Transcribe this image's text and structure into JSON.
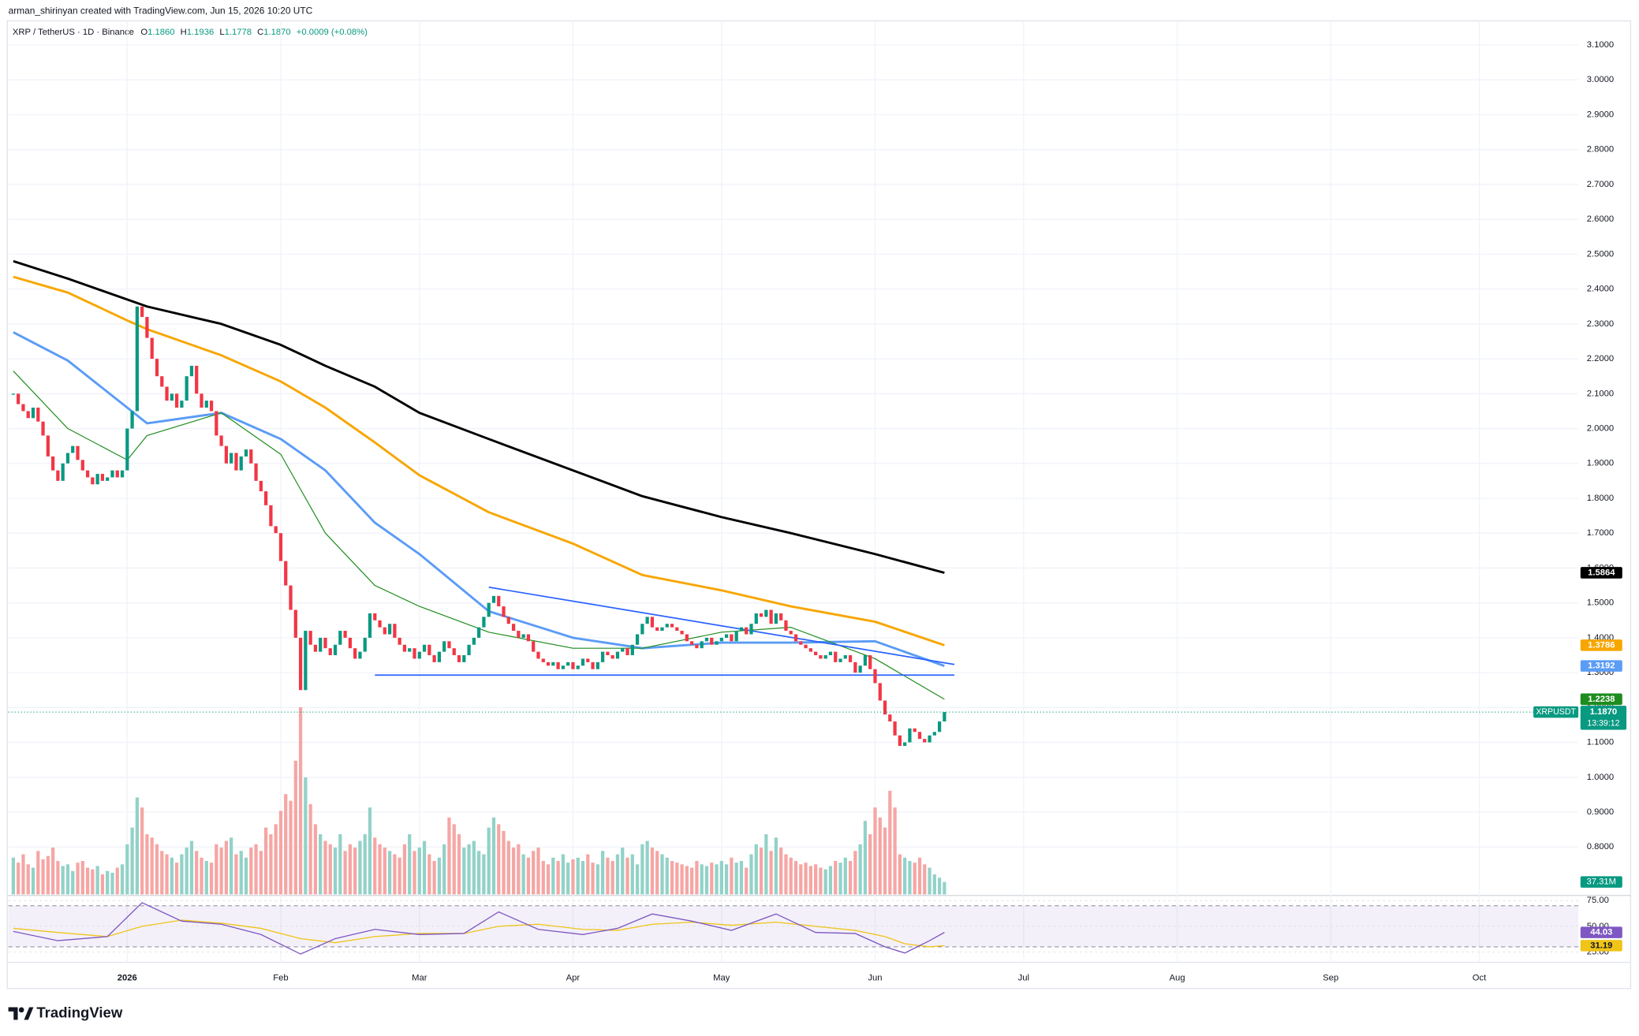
{
  "header": {
    "author_line": "arman_shirinyan created with TradingView.com, Jun 15, 2026 10:20 UTC",
    "symbol": "XRP / TetherUS · 1D · Binance",
    "ohlc": [
      {
        "key": "O",
        "value": "1.1860"
      },
      {
        "key": "H",
        "value": "1.1936"
      },
      {
        "key": "L",
        "value": "1.1778"
      },
      {
        "key": "C",
        "value": "1.1870"
      }
    ],
    "change": "+0.0009 (+0.08%)"
  },
  "chart_data": {
    "type": "candlestick",
    "x": [
      "2025-12-09",
      "2025-12-10",
      "2025-12-11",
      "2025-12-12",
      "2025-12-13",
      "2025-12-14",
      "2025-12-15",
      "2025-12-16",
      "2025-12-17",
      "2025-12-18",
      "2025-12-19",
      "2025-12-20",
      "2025-12-21",
      "2025-12-22",
      "2025-12-23",
      "2025-12-24",
      "2025-12-25",
      "2025-12-26",
      "2025-12-27",
      "2025-12-28",
      "2025-12-29",
      "2025-12-30",
      "2025-12-31",
      "2026-01-01",
      "2026-01-02",
      "2026-01-03",
      "2026-01-04",
      "2026-01-05",
      "2026-01-06",
      "2026-01-07",
      "2026-01-08",
      "2026-01-09",
      "2026-01-10",
      "2026-01-11",
      "2026-01-12",
      "2026-01-13",
      "2026-01-14",
      "2026-01-15",
      "2026-01-16",
      "2026-01-17",
      "2026-01-18",
      "2026-01-19",
      "2026-01-20",
      "2026-01-21",
      "2026-01-22",
      "2026-01-23",
      "2026-01-24",
      "2026-01-25",
      "2026-01-26",
      "2026-01-27",
      "2026-01-28",
      "2026-01-29",
      "2026-01-30",
      "2026-01-31",
      "2026-02-01",
      "2026-02-02",
      "2026-02-03",
      "2026-02-04",
      "2026-02-05",
      "2026-02-06",
      "2026-02-07",
      "2026-02-08",
      "2026-02-09",
      "2026-02-10",
      "2026-02-11",
      "2026-02-12",
      "2026-02-13",
      "2026-02-14",
      "2026-02-15",
      "2026-02-16",
      "2026-02-17",
      "2026-02-18",
      "2026-02-19",
      "2026-02-20",
      "2026-02-21",
      "2026-02-22",
      "2026-02-23",
      "2026-02-24",
      "2026-02-25",
      "2026-02-26",
      "2026-02-27",
      "2026-02-28",
      "2026-03-01",
      "2026-03-02",
      "2026-03-03",
      "2026-03-04",
      "2026-03-05",
      "2026-03-06",
      "2026-03-07",
      "2026-03-08",
      "2026-03-09",
      "2026-03-10",
      "2026-03-11",
      "2026-03-12",
      "2026-03-13",
      "2026-03-14",
      "2026-03-15",
      "2026-03-16",
      "2026-03-17",
      "2026-03-18",
      "2026-03-19",
      "2026-03-20",
      "2026-03-21",
      "2026-03-22",
      "2026-03-23",
      "2026-03-24",
      "2026-03-25",
      "2026-03-26",
      "2026-03-27",
      "2026-03-28",
      "2026-03-29",
      "2026-03-30",
      "2026-03-31",
      "2026-04-01",
      "2026-04-02",
      "2026-04-03",
      "2026-04-04",
      "2026-04-05",
      "2026-04-06",
      "2026-04-07",
      "2026-04-08",
      "2026-04-09",
      "2026-04-10",
      "2026-04-11",
      "2026-04-12",
      "2026-04-13",
      "2026-04-14",
      "2026-04-15",
      "2026-04-16",
      "2026-04-17",
      "2026-04-18",
      "2026-04-19",
      "2026-04-20",
      "2026-04-21",
      "2026-04-22",
      "2026-04-23",
      "2026-04-24",
      "2026-04-25",
      "2026-04-26",
      "2026-04-27",
      "2026-04-28",
      "2026-04-29",
      "2026-04-30",
      "2026-05-01",
      "2026-05-02",
      "2026-05-03",
      "2026-05-04",
      "2026-05-05",
      "2026-05-06",
      "2026-05-07",
      "2026-05-08",
      "2026-05-09",
      "2026-05-10",
      "2026-05-11",
      "2026-05-12",
      "2026-05-13",
      "2026-05-14",
      "2026-05-15",
      "2026-05-16",
      "2026-05-17",
      "2026-05-18",
      "2026-05-19",
      "2026-05-20",
      "2026-05-21",
      "2026-05-22",
      "2026-05-23",
      "2026-05-24",
      "2026-05-25",
      "2026-05-26",
      "2026-05-27",
      "2026-05-28",
      "2026-05-29",
      "2026-05-30",
      "2026-05-31",
      "2026-06-01",
      "2026-06-02",
      "2026-06-03",
      "2026-06-04",
      "2026-06-05",
      "2026-06-06",
      "2026-06-07",
      "2026-06-08",
      "2026-06-09",
      "2026-06-10",
      "2026-06-11",
      "2026-06-12",
      "2026-06-13",
      "2026-06-14",
      "2026-06-15"
    ],
    "close": [
      2.1,
      2.07,
      2.05,
      2.03,
      2.06,
      2.02,
      1.98,
      1.92,
      1.88,
      1.85,
      1.9,
      1.93,
      1.95,
      1.91,
      1.88,
      1.86,
      1.84,
      1.87,
      1.85,
      1.86,
      1.88,
      1.86,
      1.88,
      2.0,
      2.05,
      2.35,
      2.32,
      2.26,
      2.2,
      2.15,
      2.12,
      2.08,
      2.1,
      2.06,
      2.08,
      2.15,
      2.18,
      2.1,
      2.06,
      2.08,
      2.05,
      1.98,
      1.95,
      1.9,
      1.93,
      1.88,
      1.92,
      1.94,
      1.9,
      1.85,
      1.82,
      1.78,
      1.72,
      1.7,
      1.62,
      1.55,
      1.48,
      1.4,
      1.25,
      1.42,
      1.38,
      1.36,
      1.4,
      1.37,
      1.35,
      1.38,
      1.42,
      1.4,
      1.37,
      1.34,
      1.36,
      1.4,
      1.47,
      1.45,
      1.43,
      1.41,
      1.44,
      1.4,
      1.38,
      1.36,
      1.37,
      1.34,
      1.36,
      1.38,
      1.35,
      1.33,
      1.36,
      1.39,
      1.37,
      1.35,
      1.33,
      1.35,
      1.38,
      1.4,
      1.43,
      1.46,
      1.5,
      1.52,
      1.49,
      1.46,
      1.44,
      1.42,
      1.4,
      1.41,
      1.39,
      1.36,
      1.34,
      1.33,
      1.32,
      1.33,
      1.31,
      1.32,
      1.33,
      1.31,
      1.32,
      1.34,
      1.33,
      1.31,
      1.33,
      1.36,
      1.35,
      1.34,
      1.36,
      1.37,
      1.35,
      1.38,
      1.41,
      1.44,
      1.46,
      1.43,
      1.42,
      1.43,
      1.44,
      1.43,
      1.42,
      1.41,
      1.39,
      1.38,
      1.37,
      1.39,
      1.4,
      1.38,
      1.39,
      1.4,
      1.41,
      1.39,
      1.42,
      1.43,
      1.41,
      1.44,
      1.47,
      1.46,
      1.48,
      1.44,
      1.47,
      1.45,
      1.42,
      1.41,
      1.39,
      1.38,
      1.37,
      1.36,
      1.35,
      1.34,
      1.35,
      1.36,
      1.33,
      1.34,
      1.35,
      1.33,
      1.3,
      1.32,
      1.35,
      1.31,
      1.27,
      1.22,
      1.18,
      1.16,
      1.12,
      1.09,
      1.1,
      1.14,
      1.13,
      1.11,
      1.1,
      1.12,
      1.13,
      1.16,
      1.187
    ],
    "volume": [
      110,
      95,
      120,
      90,
      80,
      130,
      105,
      115,
      140,
      100,
      85,
      90,
      70,
      95,
      100,
      80,
      75,
      85,
      60,
      70,
      65,
      80,
      90,
      150,
      200,
      290,
      260,
      180,
      170,
      150,
      130,
      120,
      110,
      95,
      120,
      140,
      160,
      130,
      110,
      100,
      95,
      150,
      140,
      160,
      170,
      120,
      130,
      110,
      140,
      150,
      130,
      200,
      180,
      210,
      250,
      300,
      280,
      400,
      560,
      350,
      270,
      210,
      180,
      160,
      150,
      140,
      180,
      130,
      150,
      140,
      160,
      180,
      260,
      170,
      150,
      140,
      130,
      120,
      110,
      150,
      180,
      130,
      140,
      160,
      120,
      100,
      110,
      150,
      230,
      210,
      180,
      140,
      150,
      160,
      130,
      120,
      200,
      230,
      210,
      190,
      160,
      140,
      150,
      120,
      110,
      130,
      140,
      100,
      90,
      110,
      100,
      120,
      95,
      105,
      110,
      100,
      120,
      95,
      90,
      130,
      110,
      100,
      120,
      140,
      110,
      120,
      90,
      150,
      160,
      140,
      130,
      120,
      110,
      100,
      95,
      90,
      85,
      80,
      100,
      90,
      85,
      95,
      90,
      100,
      90,
      110,
      95,
      100,
      80,
      120,
      150,
      140,
      180,
      130,
      170,
      140,
      120,
      110,
      100,
      90,
      95,
      85,
      90,
      80,
      75,
      85,
      100,
      95,
      110,
      100,
      130,
      150,
      220,
      180,
      260,
      230,
      200,
      310,
      260,
      120,
      110,
      100,
      95,
      110,
      90,
      80,
      60,
      50,
      37.31
    ],
    "volume_tag": "37.31M",
    "candle_colors": {
      "up": "#089981",
      "down": "#f23645"
    },
    "volume_colors": {
      "up": "#92d2c8",
      "down": "#f5a6a4"
    },
    "last_price": {
      "value": 1.187,
      "label": "1.1870"
    },
    "symbol_tag": "XRPUSDT",
    "countdown": "13:39:12",
    "series": [
      {
        "color": "#000000",
        "x": [
          "2025-12-09",
          "2025-12-20",
          "2026-01-01",
          "2026-01-05",
          "2026-01-20",
          "2026-02-01",
          "2026-02-10",
          "2026-02-20",
          "2026-03-01",
          "2026-03-15",
          "2026-04-01",
          "2026-04-15",
          "2026-05-01",
          "2026-05-15",
          "2026-06-01",
          "2026-06-15"
        ],
        "values": [
          2.48,
          2.43,
          2.37,
          2.35,
          2.3,
          2.24,
          2.18,
          2.12,
          2.045,
          1.97,
          1.88,
          1.806,
          1.746,
          1.7,
          1.64,
          1.5864
        ]
      },
      {
        "color": "#f7a600",
        "x": [
          "2025-12-09",
          "2025-12-20",
          "2026-01-01",
          "2026-01-05",
          "2026-01-20",
          "2026-02-01",
          "2026-02-10",
          "2026-02-20",
          "2026-03-01",
          "2026-03-15",
          "2026-04-01",
          "2026-04-15",
          "2026-05-01",
          "2026-05-15",
          "2026-06-01",
          "2026-06-15"
        ],
        "values": [
          2.435,
          2.39,
          2.31,
          2.285,
          2.21,
          2.135,
          2.06,
          1.96,
          1.866,
          1.76,
          1.67,
          1.58,
          1.536,
          1.49,
          1.446,
          1.3786
        ]
      },
      {
        "color": "#5b9cf6",
        "x": [
          "2025-12-09",
          "2025-12-20",
          "2026-01-01",
          "2026-01-05",
          "2026-01-20",
          "2026-02-01",
          "2026-02-10",
          "2026-02-20",
          "2026-03-01",
          "2026-03-15",
          "2026-04-01",
          "2026-04-15",
          "2026-05-01",
          "2026-05-15",
          "2026-06-01",
          "2026-06-15"
        ],
        "values": [
          2.276,
          2.195,
          2.06,
          2.015,
          2.045,
          1.97,
          1.88,
          1.73,
          1.64,
          1.476,
          1.4,
          1.37,
          1.386,
          1.386,
          1.39,
          1.3192
        ]
      },
      {
        "color": "#1e8c1e",
        "x": [
          "2025-12-09",
          "2025-12-20",
          "2026-01-01",
          "2026-01-05",
          "2026-01-20",
          "2026-02-01",
          "2026-02-10",
          "2026-02-20",
          "2026-03-01",
          "2026-03-15",
          "2026-04-01",
          "2026-04-15",
          "2026-05-01",
          "2026-05-15",
          "2026-06-01",
          "2026-06-15"
        ],
        "values": [
          2.165,
          2.0,
          1.91,
          1.98,
          2.045,
          1.926,
          1.7,
          1.55,
          1.49,
          1.416,
          1.37,
          1.37,
          1.416,
          1.43,
          1.34,
          1.2238
        ]
      }
    ],
    "trendlines": [
      {
        "x": [
          "2026-03-15",
          "2026-06-17"
        ],
        "values": [
          1.545,
          1.3235
        ]
      },
      {
        "x": [
          "2026-02-20",
          "2026-06-17"
        ],
        "values": [
          1.293,
          1.293
        ]
      }
    ],
    "trendline_color": "#2962ff",
    "xlim": [
      "2025-12-08",
      "2026-10-21"
    ],
    "xticks": [
      {
        "value": "2026-01-01",
        "label": "2026"
      },
      {
        "value": "2026-02-01",
        "label": "Feb"
      },
      {
        "value": "2026-03-01",
        "label": "Mar"
      },
      {
        "value": "2026-04-01",
        "label": "Apr"
      },
      {
        "value": "2026-05-01",
        "label": "May"
      },
      {
        "value": "2026-06-01",
        "label": "Jun"
      },
      {
        "value": "2026-07-01",
        "label": "Jul"
      },
      {
        "value": "2026-08-01",
        "label": "Aug"
      },
      {
        "value": "2026-09-01",
        "label": "Sep"
      },
      {
        "value": "2026-10-01",
        "label": "Oct"
      }
    ],
    "ylim": [
      0.664,
      3.169
    ],
    "yticks": [
      {
        "value": 0.8,
        "label": "0.8000"
      },
      {
        "value": 0.9,
        "label": "0.9000"
      },
      {
        "value": 1.0,
        "label": "1.0000"
      },
      {
        "value": 1.1,
        "label": "1.1000"
      },
      {
        "value": 1.2,
        "label": "1.2000"
      },
      {
        "value": 1.3,
        "label": "1.3000"
      },
      {
        "value": 1.4,
        "label": "1.4000"
      },
      {
        "value": 1.5,
        "label": "1.5000"
      },
      {
        "value": 1.6,
        "label": "1.6000"
      },
      {
        "value": 1.7,
        "label": "1.7000"
      },
      {
        "value": 1.8,
        "label": "1.8000"
      },
      {
        "value": 1.9,
        "label": "1.9000"
      },
      {
        "value": 2.0,
        "label": "2.0000"
      },
      {
        "value": 2.1,
        "label": "2.1000"
      },
      {
        "value": 2.2,
        "label": "2.2000"
      },
      {
        "value": 2.3,
        "label": "2.3000"
      },
      {
        "value": 2.4,
        "label": "2.4000"
      },
      {
        "value": 2.5,
        "label": "2.5000"
      },
      {
        "value": 2.6,
        "label": "2.6000"
      },
      {
        "value": 2.7,
        "label": "2.7000"
      },
      {
        "value": 2.8,
        "label": "2.8000"
      },
      {
        "value": 2.9,
        "label": "2.9000"
      },
      {
        "value": 3.0,
        "label": "3.0000"
      },
      {
        "value": 3.1,
        "label": "3.1000"
      }
    ],
    "grid": true,
    "rsi": {
      "color": "#7e57c2",
      "x": [
        "2025-12-09",
        "2025-12-18",
        "2025-12-28",
        "2026-01-04",
        "2026-01-12",
        "2026-01-20",
        "2026-01-28",
        "2026-02-05",
        "2026-02-12",
        "2026-02-20",
        "2026-03-01",
        "2026-03-10",
        "2026-03-17",
        "2026-03-25",
        "2026-04-03",
        "2026-04-10",
        "2026-04-17",
        "2026-04-25",
        "2026-05-03",
        "2026-05-12",
        "2026-05-20",
        "2026-05-28",
        "2026-06-03",
        "2026-06-07",
        "2026-06-12",
        "2026-06-15"
      ],
      "values": [
        45,
        36,
        40,
        73,
        55,
        52,
        42,
        23,
        38,
        47,
        42,
        43,
        64,
        47,
        42,
        48,
        62,
        55,
        46,
        62,
        44,
        43,
        30,
        24,
        36,
        44.03
      ],
      "ma_color": "#f0c419",
      "ma_values": [
        48,
        44,
        40,
        50,
        56,
        53,
        48,
        38,
        34,
        40,
        43,
        43,
        50,
        52,
        47,
        46,
        52,
        54,
        51,
        54,
        50,
        46,
        40,
        33,
        30,
        31.19
      ],
      "ylim": [
        20,
        80
      ],
      "yticks": [
        {
          "value": 75,
          "label": "75.00"
        },
        {
          "value": 50,
          "label": "50.00"
        },
        {
          "value": 25,
          "label": "25.00"
        }
      ],
      "band": [
        30,
        70
      ]
    }
  },
  "footer": {
    "brand": "TradingView"
  }
}
